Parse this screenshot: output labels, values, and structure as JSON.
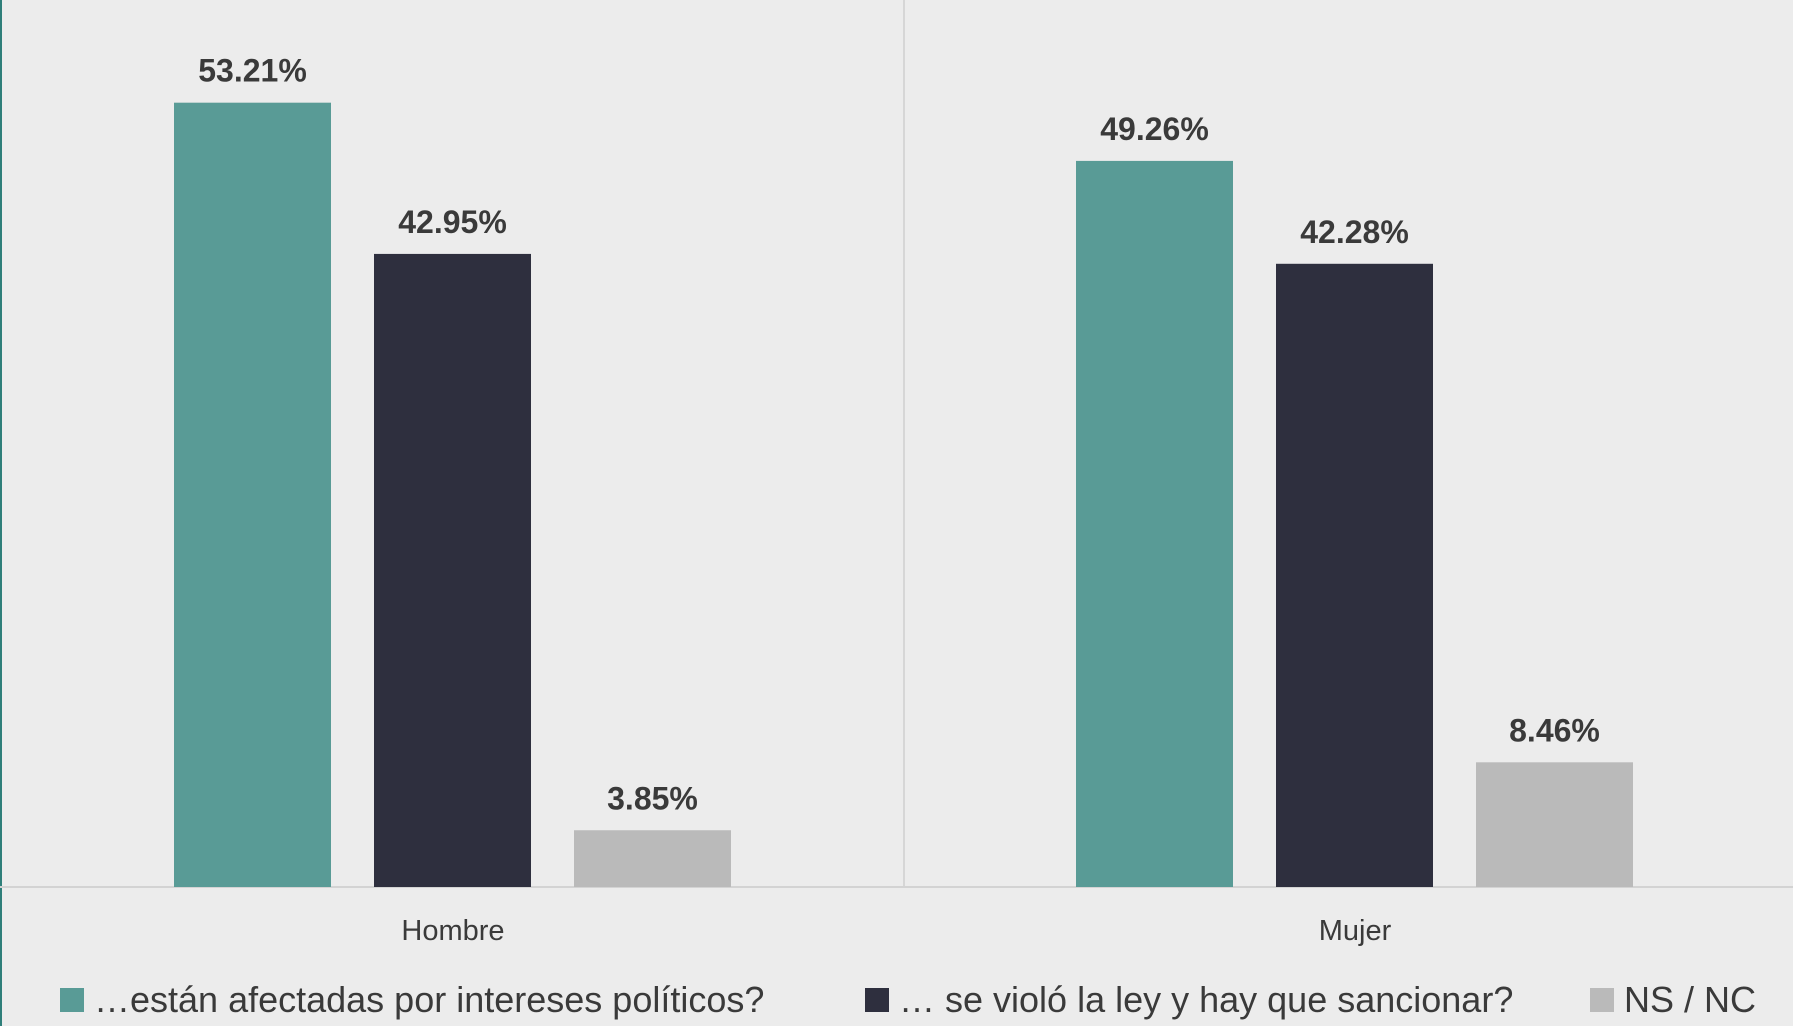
{
  "chart_data": {
    "type": "bar",
    "categories": [
      "Hombre",
      "Mujer"
    ],
    "series": [
      {
        "name": "…están afectadas por intereses políticos?",
        "color": "#599b96",
        "values": [
          53.21,
          49.26
        ],
        "labels": [
          "53.21%",
          "49.26%"
        ]
      },
      {
        "name": "… se violó la ley y hay que sancionar?",
        "color": "#2e2f3e",
        "values": [
          42.95,
          42.28
        ],
        "labels": [
          "42.95%",
          "42.28%"
        ]
      },
      {
        "name": "NS / NC",
        "color": "#bababa",
        "values": [
          3.85,
          8.46
        ],
        "labels": [
          "3.85%",
          "8.46%"
        ]
      }
    ],
    "ylim": [
      0,
      60
    ],
    "legend_position": "bottom",
    "grid": false,
    "category_separators": true
  }
}
